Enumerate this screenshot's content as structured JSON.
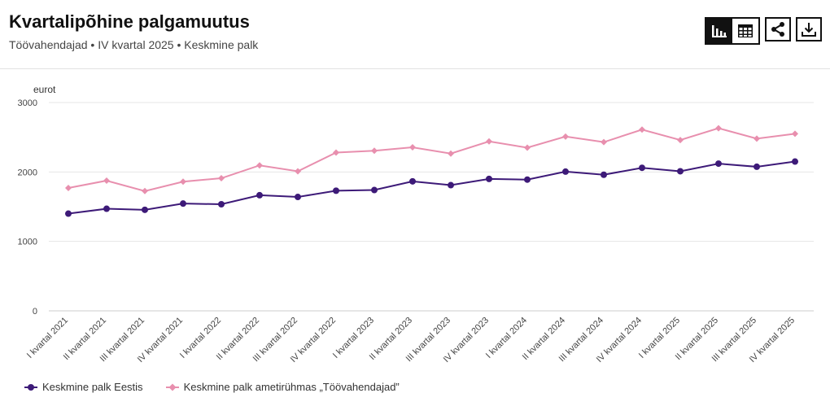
{
  "header": {
    "title": "Kvartalipõhine palgamuutus",
    "subtitle": "Töövahendajad • IV kvartal 2025 • Keskmine palk"
  },
  "toolbar": {
    "chart_view": "bar-chart-icon",
    "table_view": "table-icon",
    "share": "share-icon",
    "download": "download-icon"
  },
  "colors": {
    "series1": "#3d1a78",
    "series2": "#e88fae",
    "grid": "#e6e6e6"
  },
  "chart_data": {
    "type": "line",
    "ylabel": "eurot",
    "ylim": [
      0,
      3000
    ],
    "yticks": [
      0,
      1000,
      2000,
      3000
    ],
    "categories": [
      "I kvartal 2021",
      "II kvartal 2021",
      "III kvartal 2021",
      "IV kvartal 2021",
      "I kvartal 2022",
      "II kvartal 2022",
      "III kvartal 2022",
      "IV kvartal 2022",
      "I kvartal 2023",
      "II kvartal 2023",
      "III kvartal 2023",
      "IV kvartal 2023",
      "I kvartal 2024",
      "II kvartal 2024",
      "III kvartal 2024",
      "IV kvartal 2024",
      "I kvartal 2025",
      "II kvartal 2025",
      "III kvartal 2025",
      "IV kvartal 2025"
    ],
    "series": [
      {
        "name": "Keskmine palk Eestis",
        "marker": "circle",
        "values": [
          1400,
          1470,
          1455,
          1545,
          1535,
          1665,
          1640,
          1730,
          1740,
          1865,
          1810,
          1900,
          1890,
          2005,
          1960,
          2060,
          2010,
          2120,
          2075,
          2150
        ]
      },
      {
        "name": "Keskmine palk ametirühmas „Töövahendajad”",
        "marker": "diamond",
        "values": [
          1770,
          1875,
          1725,
          1860,
          1910,
          2095,
          2010,
          2280,
          2305,
          2355,
          2265,
          2440,
          2350,
          2510,
          2430,
          2610,
          2460,
          2630,
          2480,
          2550
        ]
      }
    ],
    "grid": true,
    "legend": "bottom-left"
  }
}
